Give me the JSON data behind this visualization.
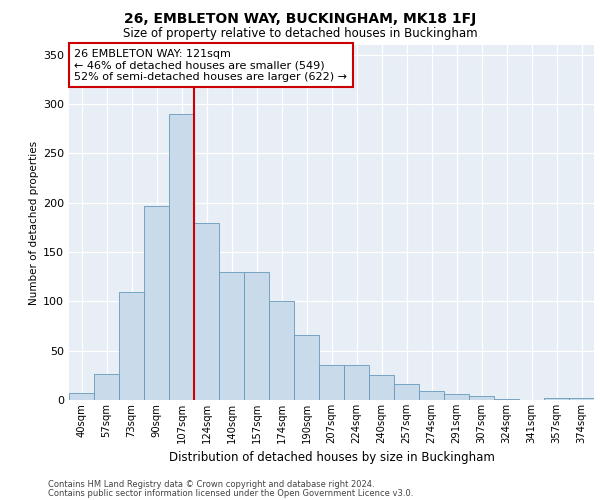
{
  "title1": "26, EMBLETON WAY, BUCKINGHAM, MK18 1FJ",
  "title2": "Size of property relative to detached houses in Buckingham",
  "xlabel": "Distribution of detached houses by size in Buckingham",
  "ylabel": "Number of detached properties",
  "categories": [
    "40sqm",
    "57sqm",
    "73sqm",
    "90sqm",
    "107sqm",
    "124sqm",
    "140sqm",
    "157sqm",
    "174sqm",
    "190sqm",
    "207sqm",
    "224sqm",
    "240sqm",
    "257sqm",
    "274sqm",
    "291sqm",
    "307sqm",
    "324sqm",
    "341sqm",
    "357sqm",
    "374sqm"
  ],
  "values": [
    7,
    26,
    110,
    197,
    290,
    180,
    130,
    130,
    100,
    66,
    35,
    35,
    25,
    16,
    9,
    6,
    4,
    1,
    0,
    2,
    2
  ],
  "bar_color": "#c9daea",
  "bar_edge_color": "#6699bb",
  "vline_color": "#cc0000",
  "annotation_text": "26 EMBLETON WAY: 121sqm\n← 46% of detached houses are smaller (549)\n52% of semi-detached houses are larger (622) →",
  "annotation_box_color": "white",
  "annotation_box_edge_color": "#cc0000",
  "ylim": [
    0,
    360
  ],
  "yticks": [
    0,
    50,
    100,
    150,
    200,
    250,
    300,
    350
  ],
  "bg_color": "#e8eef5",
  "grid_color": "white",
  "footer1": "Contains HM Land Registry data © Crown copyright and database right 2024.",
  "footer2": "Contains public sector information licensed under the Open Government Licence v3.0."
}
